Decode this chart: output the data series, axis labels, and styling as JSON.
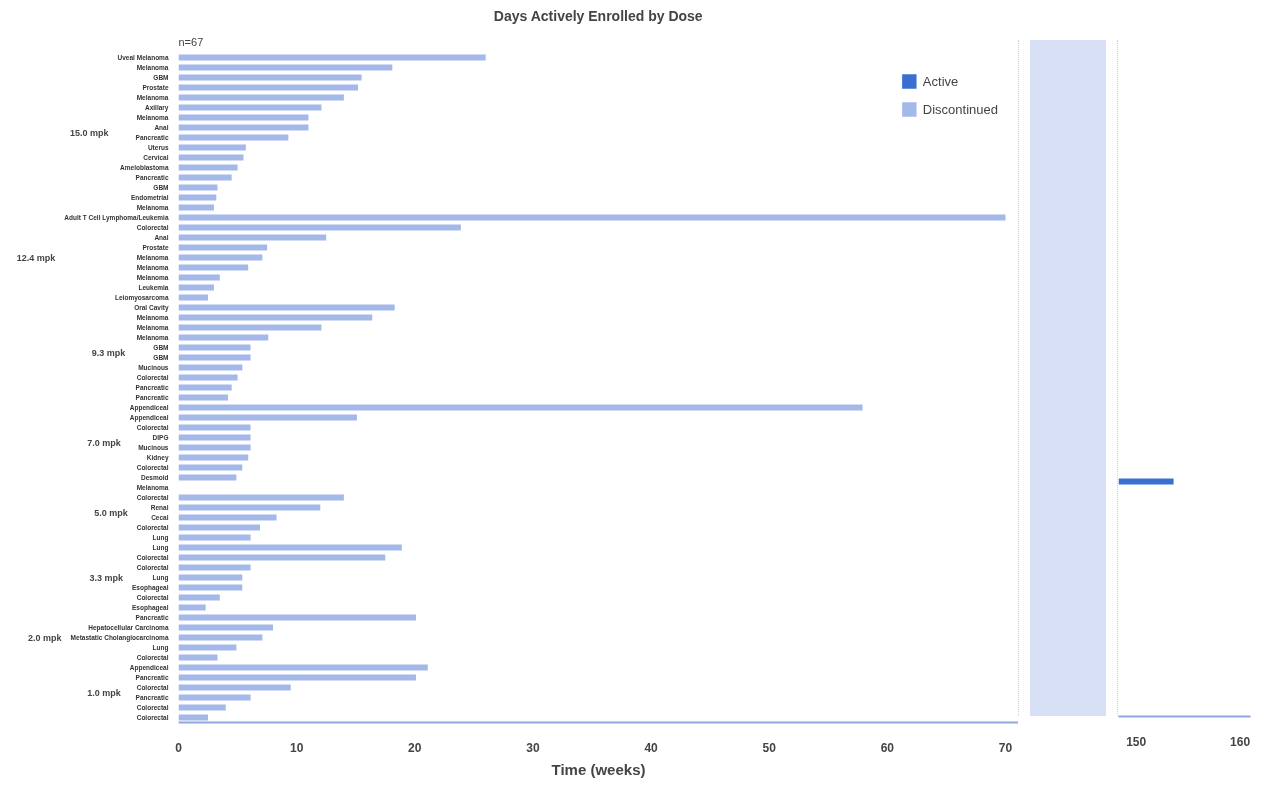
{
  "chart_data": [
    {
      "type": "bar",
      "orientation": "horizontal",
      "title": "Days Actively Enrolled by Dose",
      "annotations": [
        "n=67"
      ],
      "ylabel": "15.0 mpk",
      "legend": "top right",
      "tick_labels": "y",
      "xlim": [
        0,
        71.1
      ],
      "xticks": [
        0,
        10,
        20,
        30,
        40,
        50,
        60,
        70
      ],
      "categories": [
        "Uveal Melanoma",
        "Melanoma",
        "GBM",
        "Prostate",
        "Melanoma",
        "Axillary",
        "Melanoma",
        "Anal",
        "Pancreatic",
        "Uterus",
        "Cervical",
        "Ameloblastoma",
        "Pancreatic",
        "GBM",
        "Endometrial",
        "Melanoma"
      ],
      "series": [
        {
          "name": "Active",
          "color": "#3a6fd1",
          "values": [
            null,
            null,
            null,
            null,
            null,
            null,
            null,
            null,
            null,
            null,
            null,
            null,
            null,
            null,
            null,
            null
          ]
        },
        {
          "name": "Discontinued",
          "color": "#a4b9e9",
          "values": [
            26.0,
            18.1,
            15.5,
            15.2,
            14.0,
            12.1,
            11.0,
            11.0,
            9.3,
            5.7,
            5.5,
            5.0,
            4.5,
            3.3,
            3.2,
            3.0
          ]
        }
      ]
    },
    {
      "type": "bar",
      "orientation": "horizontal",
      "ylabel": "12.4 mpk",
      "tick_labels": "y",
      "xlim": [
        0,
        71.1
      ],
      "xticks": [
        0,
        10,
        20,
        30,
        40,
        50,
        60,
        70
      ],
      "categories": [
        "Adult T Cell Lymphoma/Leukemia",
        "Colorectal",
        "Anal",
        "Prostate",
        "Melanoma",
        "Melanoma",
        "Melanoma",
        "Leukemia",
        "Leiomyosarcoma"
      ],
      "series": [
        {
          "color": "#a4b9e9",
          "values": [
            70.0,
            23.9,
            12.5,
            7.5,
            7.1,
            5.9,
            3.5,
            3.0,
            2.5
          ]
        }
      ]
    },
    {
      "type": "bar",
      "orientation": "horizontal",
      "ylabel": "9.3 mpk",
      "tick_labels": "y",
      "xlim": [
        0,
        71.1
      ],
      "xticks": [
        0,
        10,
        20,
        30,
        40,
        50,
        60,
        70
      ],
      "categories": [
        "Oral Cavity",
        "Melanoma",
        "Melanoma",
        "Melanoma",
        "GBM",
        "GBM",
        "Mucinous",
        "Colorectal",
        "Pancreatic",
        "Pancreatic"
      ],
      "series": [
        {
          "color": "#a4b9e9",
          "values": [
            18.3,
            16.4,
            12.1,
            7.6,
            6.1,
            6.1,
            5.4,
            5.0,
            4.5,
            4.2
          ]
        }
      ]
    },
    {
      "type": "bar",
      "orientation": "horizontal",
      "ylabel": "7.0 mpk",
      "tick_labels": "y",
      "xlim": [
        0,
        71.1
      ],
      "xticks": [
        0,
        10,
        20,
        30,
        40,
        50,
        60,
        70
      ],
      "categories": [
        "Appendiceal",
        "Appendiceal",
        "Colorectal",
        "DIPG",
        "Mucinous",
        "Kidney",
        "Colorectal",
        "Desmoid"
      ],
      "series": [
        {
          "color": "#a4b9e9",
          "values": [
            57.9,
            15.1,
            6.1,
            6.1,
            6.1,
            5.9,
            5.4,
            4.9
          ]
        }
      ]
    },
    {
      "type": "bar",
      "orientation": "horizontal",
      "ylabel": "5.0 mpk",
      "tick_labels": "y",
      "xlim": [
        0,
        71.1
      ],
      "xticks": [
        0,
        10,
        20,
        30,
        40,
        50,
        60,
        70
      ],
      "categories": [
        "Melanoma",
        "Colorectal",
        "Renal",
        "Cecal",
        "Colorectal",
        "Lung"
      ],
      "series": [
        {
          "color": "#a4b9e9",
          "values": [
            null,
            14.0,
            12.0,
            8.3,
            6.9,
            6.1
          ]
        }
      ]
    },
    {
      "type": "bar",
      "orientation": "horizontal",
      "ylabel": "3.3 mpk",
      "tick_labels": "y",
      "xlim": [
        0,
        71.1
      ],
      "xticks": [
        0,
        10,
        20,
        30,
        40,
        50,
        60,
        70
      ],
      "categories": [
        "Lung",
        "Colorectal",
        "Colorectal",
        "Lung",
        "Esophageal",
        "Colorectal",
        "Esophageal"
      ],
      "series": [
        {
          "color": "#a4b9e9",
          "values": [
            18.9,
            17.5,
            6.1,
            5.4,
            5.4,
            3.5,
            2.3
          ]
        }
      ]
    },
    {
      "type": "bar",
      "orientation": "horizontal",
      "ylabel": "2.0 mpk",
      "tick_labels": "y",
      "xlim": [
        0,
        71.1
      ],
      "xticks": [
        0,
        10,
        20,
        30,
        40,
        50,
        60,
        70
      ],
      "categories": [
        "Pancreatic",
        "Hepatocellular Carcinoma",
        "Metastatic Cholangiocarcinoma",
        "Lung",
        "Colorectal"
      ],
      "series": [
        {
          "color": "#a4b9e9",
          "values": [
            20.1,
            8.0,
            7.1,
            4.9,
            3.3
          ]
        }
      ]
    },
    {
      "type": "bar",
      "orientation": "horizontal",
      "ylabel": "1.0 mpk",
      "xlabel": "Time (weeks)",
      "xlim": [
        0,
        71.1
      ],
      "xticks": [
        0,
        10,
        20,
        30,
        40,
        50,
        60,
        70
      ],
      "categories": [
        "Appendiceal",
        "Pancreatic",
        "Colorectal",
        "Pancreatic",
        "Colorectal",
        "Colorectal"
      ],
      "series": [
        {
          "color": "#a4b9e9",
          "values": [
            21.1,
            20.1,
            9.5,
            6.1,
            4.0,
            2.5
          ]
        }
      ]
    },
    {
      "type": "bar",
      "orientation": "horizontal",
      "tick_labels": "x",
      "xlim": [
        148.3,
        161
      ],
      "xticks": [
        150,
        160
      ],
      "categories": [
        null,
        null,
        null,
        null,
        null,
        null,
        null,
        null,
        null,
        null,
        null,
        null,
        null,
        null,
        null,
        null,
        null,
        null,
        null,
        null,
        null,
        null,
        null,
        null,
        null,
        null,
        null,
        null,
        null,
        null,
        null,
        null,
        null,
        null,
        null,
        null,
        null,
        null,
        null,
        null,
        null,
        null,
        null,
        null,
        null,
        null,
        null,
        null,
        null,
        null,
        null,
        null,
        null,
        null,
        null,
        null,
        null,
        null,
        null,
        null,
        null,
        null,
        null,
        null,
        null,
        null,
        null
      ],
      "series": [
        {
          "color": "#3a6fd1",
          "values": [
            null,
            null,
            null,
            null,
            null,
            null,
            null,
            null,
            null,
            null,
            null,
            null,
            null,
            null,
            null,
            null,
            null,
            null,
            null,
            null,
            null,
            null,
            null,
            null,
            null,
            null,
            null,
            null,
            null,
            null,
            null,
            null,
            null,
            null,
            null,
            null,
            null,
            null,
            null,
            null,
            null,
            null,
            null,
            153.6,
            null,
            null,
            null,
            null,
            null,
            null,
            null,
            null,
            null,
            null,
            null,
            null,
            null,
            null,
            null,
            null,
            null,
            null,
            null,
            null,
            null,
            null,
            null
          ]
        }
      ]
    }
  ]
}
